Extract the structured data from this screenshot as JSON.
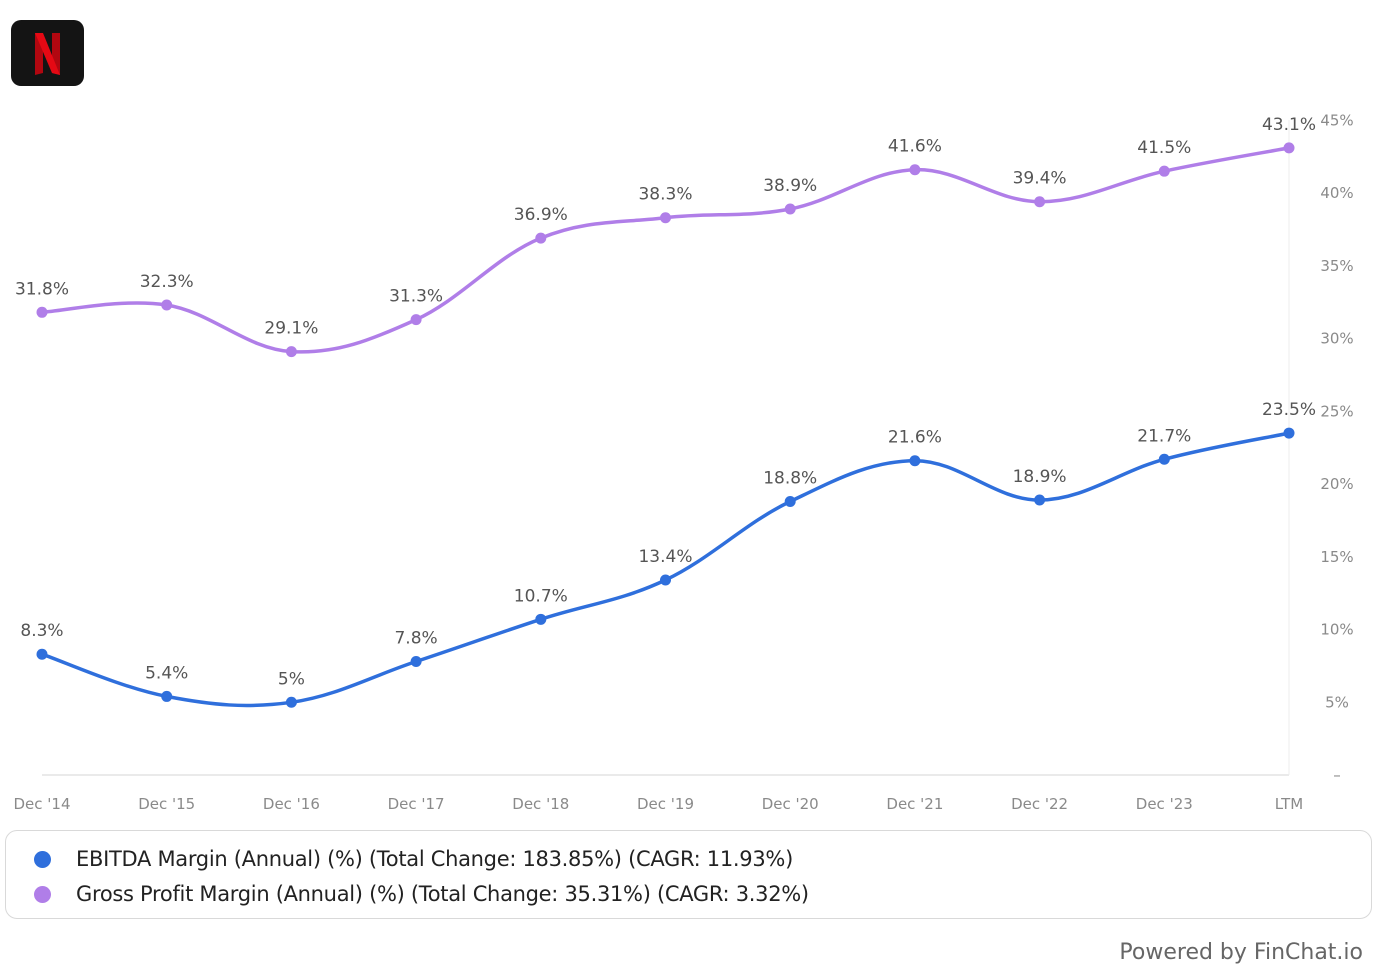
{
  "colors": {
    "ebitda": "#2f6fdc",
    "gross": "#b07ee8",
    "logo_bg": "#141414",
    "logo_letter": "#e50914"
  },
  "logo": {
    "icon": "netflix-n-logo"
  },
  "chart_data": {
    "type": "line",
    "title": "",
    "xlabel": "",
    "ylabel": "",
    "categories": [
      "Dec '14",
      "Dec '15",
      "Dec '16",
      "Dec '17",
      "Dec '18",
      "Dec '19",
      "Dec '20",
      "Dec '21",
      "Dec '22",
      "Dec '23",
      "LTM"
    ],
    "y_ticks": [
      "–",
      "5%",
      "10%",
      "15%",
      "20%",
      "25%",
      "30%",
      "35%",
      "40%",
      "45%"
    ],
    "y_tick_values": [
      0,
      5,
      10,
      15,
      20,
      25,
      30,
      35,
      40,
      45
    ],
    "ylim": [
      0,
      45
    ],
    "y_axis_position": "right",
    "grid": false,
    "legend_position": "bottom",
    "series": [
      {
        "key": "ebitda",
        "name": "EBITDA Margin (Annual) (%) (Total Change: 183.85%) (CAGR: 11.93%)",
        "values": [
          8.3,
          5.4,
          5.0,
          7.8,
          10.7,
          13.4,
          18.8,
          21.6,
          18.9,
          21.7,
          23.5
        ],
        "labels": [
          "8.3%",
          "5.4%",
          "5%",
          "7.8%",
          "10.7%",
          "13.4%",
          "18.8%",
          "21.6%",
          "18.9%",
          "21.7%",
          "23.5%"
        ]
      },
      {
        "key": "gross",
        "name": "Gross Profit Margin (Annual) (%) (Total Change: 35.31%) (CAGR: 3.32%)",
        "values": [
          31.8,
          32.3,
          29.1,
          31.3,
          36.9,
          38.3,
          38.9,
          41.6,
          39.4,
          41.5,
          43.1
        ],
        "labels": [
          "31.8%",
          "32.3%",
          "29.1%",
          "31.3%",
          "36.9%",
          "38.3%",
          "38.9%",
          "41.6%",
          "39.4%",
          "41.5%",
          "43.1%"
        ]
      }
    ]
  },
  "legend": {
    "items": [
      {
        "label": "EBITDA Margin (Annual) (%) (Total Change: 183.85%) (CAGR: 11.93%)"
      },
      {
        "label": "Gross Profit Margin (Annual) (%) (Total Change: 35.31%) (CAGR: 3.32%)"
      }
    ]
  },
  "footer": {
    "powered_by": "Powered by FinChat.io"
  }
}
